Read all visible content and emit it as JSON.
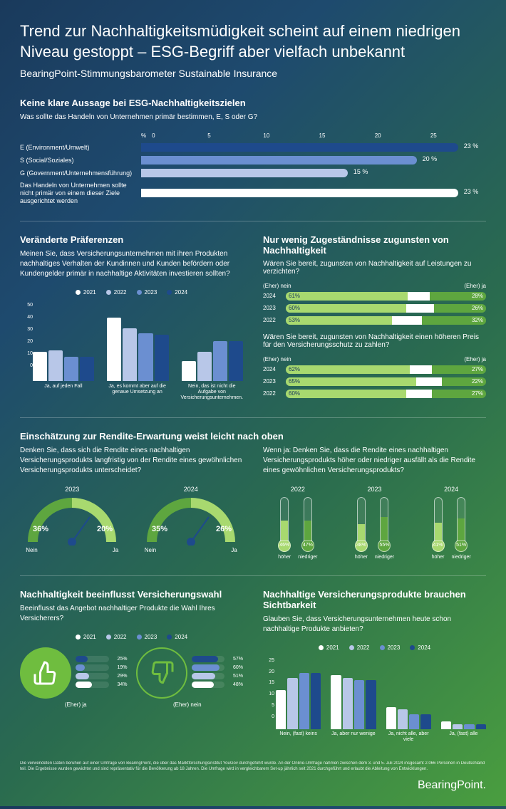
{
  "title": "Trend zur Nachhaltigkeitsmüdigkeit scheint auf einem niedrigen Niveau gestoppt – ESG-Begriff aber vielfach unbekannt",
  "subtitle": "BearingPoint-Stimmungsbarometer Sustainable Insurance",
  "colors": {
    "y2021": "#ffffff",
    "y2022": "#b8c7e8",
    "y2023": "#6b8fd1",
    "y2024": "#1e4a8c",
    "green_light": "#a8d96f",
    "green_dark": "#5ea63f",
    "green_vivid": "#6fbd3f",
    "white": "#ffffff"
  },
  "esg": {
    "title": "Keine klare Aussage bei ESG-Nachhaltigkeitszielen",
    "question": "Was sollte das Handeln von Unternehmen primär bestimmen, E, S oder G?",
    "axis_label": "%",
    "ticks": [
      "0",
      "5",
      "10",
      "15",
      "20",
      "25"
    ],
    "max": 25,
    "rows": [
      {
        "label": "E (Environment/Umwelt)",
        "value": 23,
        "color": "#1e4a8c"
      },
      {
        "label": "S (Social/Soziales)",
        "value": 20,
        "color": "#6b8fd1"
      },
      {
        "label": "G (Government/Unternehmensführung)",
        "value": 15,
        "color": "#b8c7e8"
      },
      {
        "label": "Das Handeln von Unternehmen sollte nicht primär von einem dieser Ziele ausgerichtet werden",
        "value": 23,
        "color": "#ffffff"
      }
    ]
  },
  "prefs": {
    "title": "Veränderte Präferenzen",
    "question": "Meinen Sie, dass Versicherungsunternehmen mit ihren Produkten nachhaltiges Verhalten der Kundinnen und Kunden befördern oder Kundengelder primär in nachhaltige Aktivitäten investieren sollten?",
    "legend": [
      "2021",
      "2022",
      "2023",
      "2024"
    ],
    "ymax": 50,
    "yticks": [
      "50",
      "40",
      "30",
      "20",
      "10",
      "0"
    ],
    "groups": [
      {
        "label": "Ja, auf jeden Fall",
        "vals": [
          22,
          23,
          18,
          18
        ]
      },
      {
        "label": "Ja, es kommt aber auf die genaue Umsetzung an",
        "vals": [
          48,
          40,
          36,
          35
        ]
      },
      {
        "label": "Nein, das ist nicht die Aufgabe von Versicherungsunternehmen.",
        "vals": [
          15,
          22,
          30,
          30
        ]
      }
    ]
  },
  "concessions": {
    "title": "Nur wenig Zugeständnisse zugunsten von Nachhaltigkeit",
    "q1": "Wären Sie bereit, zugunsten von Nachhaltigkeit auf Leistungen zu verzichten?",
    "q2": "Wären Sie bereit, zugunsten von Nachhaltigkeit einen höheren Preis für den Versicherungsschutz zu zahlen?",
    "left_label": "(Eher) nein",
    "right_label": "(Eher) ja",
    "set1": [
      {
        "year": "2024",
        "no": 61,
        "yes": 28
      },
      {
        "year": "2023",
        "no": 60,
        "yes": 26
      },
      {
        "year": "2022",
        "no": 53,
        "yes": 32
      }
    ],
    "set2": [
      {
        "year": "2024",
        "no": 62,
        "yes": 27
      },
      {
        "year": "2023",
        "no": 65,
        "yes": 22
      },
      {
        "year": "2022",
        "no": 60,
        "yes": 27
      }
    ]
  },
  "returns": {
    "title": "Einschätzung zur Rendite-Erwartung weist leicht nach oben",
    "q_left": "Denken Sie, dass sich die Rendite eines nachhaltigen Versicherungsprodukts langfristig von der Rendite eines gewöhnlichen Versicherungsprodukts unterscheidet?",
    "q_right": "Wenn ja: Denken Sie, dass die Rendite eines nachhaltigen Versicherungsprodukts höher oder niedriger ausfällt als die Rendite eines gewöhnlichen Versicherungsprodukts?",
    "gauges": [
      {
        "year": "2023",
        "no": 36,
        "yes": 20
      },
      {
        "year": "2024",
        "no": 35,
        "yes": 26
      }
    ],
    "gauge_no": "Nein",
    "gauge_yes": "Ja",
    "thermos": [
      {
        "year": "2022",
        "higher": 46,
        "lower": 47
      },
      {
        "year": "2023",
        "higher": 38,
        "lower": 55
      },
      {
        "year": "2024",
        "higher": 41,
        "lower": 51
      }
    ],
    "t_higher": "höher",
    "t_lower": "niedriger"
  },
  "influence": {
    "title": "Nachhaltigkeit beeinflusst Versicherungswahl",
    "question": "Beeinflusst das Angebot nachhaltiger Produkte die Wahl Ihres Versicherers?",
    "yes_label": "(Eher) ja",
    "no_label": "(Eher) nein",
    "yes_vals": [
      {
        "year": "2024",
        "v": 25,
        "color": "#1e4a8c"
      },
      {
        "year": "2023",
        "v": 19,
        "color": "#6b8fd1"
      },
      {
        "year": "2022",
        "v": 29,
        "color": "#b8c7e8"
      },
      {
        "year": "2021",
        "v": 34,
        "color": "#ffffff"
      }
    ],
    "no_vals": [
      {
        "year": "2024",
        "v": 57,
        "color": "#1e4a8c"
      },
      {
        "year": "2023",
        "v": 60,
        "color": "#6b8fd1"
      },
      {
        "year": "2022",
        "v": 51,
        "color": "#b8c7e8"
      },
      {
        "year": "2021",
        "v": 48,
        "color": "#ffffff"
      }
    ]
  },
  "visibility": {
    "title": "Nachhaltige Versicherungsprodukte brauchen Sichtbarkeit",
    "question": "Glauben Sie, dass Versicherungsunternehmen heute schon nachhaltige Produkte anbieten?",
    "legend": [
      "2021",
      "2022",
      "2023",
      "2024"
    ],
    "ymax": 25,
    "yticks": [
      "25",
      "20",
      "15",
      "10",
      "5",
      "0"
    ],
    "groups": [
      {
        "label": "Nein, (fast) keins",
        "vals": [
          16,
          21,
          23,
          23
        ]
      },
      {
        "label": "Ja, aber nur wenige",
        "vals": [
          22,
          21,
          20,
          20
        ]
      },
      {
        "label": "Ja, nicht alle, aber viele",
        "vals": [
          9,
          8,
          6,
          6
        ]
      },
      {
        "label": "Ja, (fast) alle",
        "vals": [
          3,
          2,
          2,
          2
        ]
      }
    ]
  },
  "footnote": "Die verwendeten Daten beruhen auf einer Umfrage von BearingPoint, die über das Marktforschungsinstitut YouGov durchgeführt wurde. An der Online-Umfrage nahmen zwischen dem 3. und 5. Juli 2024 insgesamt 2.066 Personen in Deutschland teil. Die Ergebnisse wurden gewichtet und sind repräsentativ für die Bevölkerung ab 18 Jahren. Die Umfrage wird in vergleichbarem Set-up jährlich seit 2021 durchgeführt und erlaubt die Ableitung von Entwicklungen.",
  "brand": "BearingPoint."
}
